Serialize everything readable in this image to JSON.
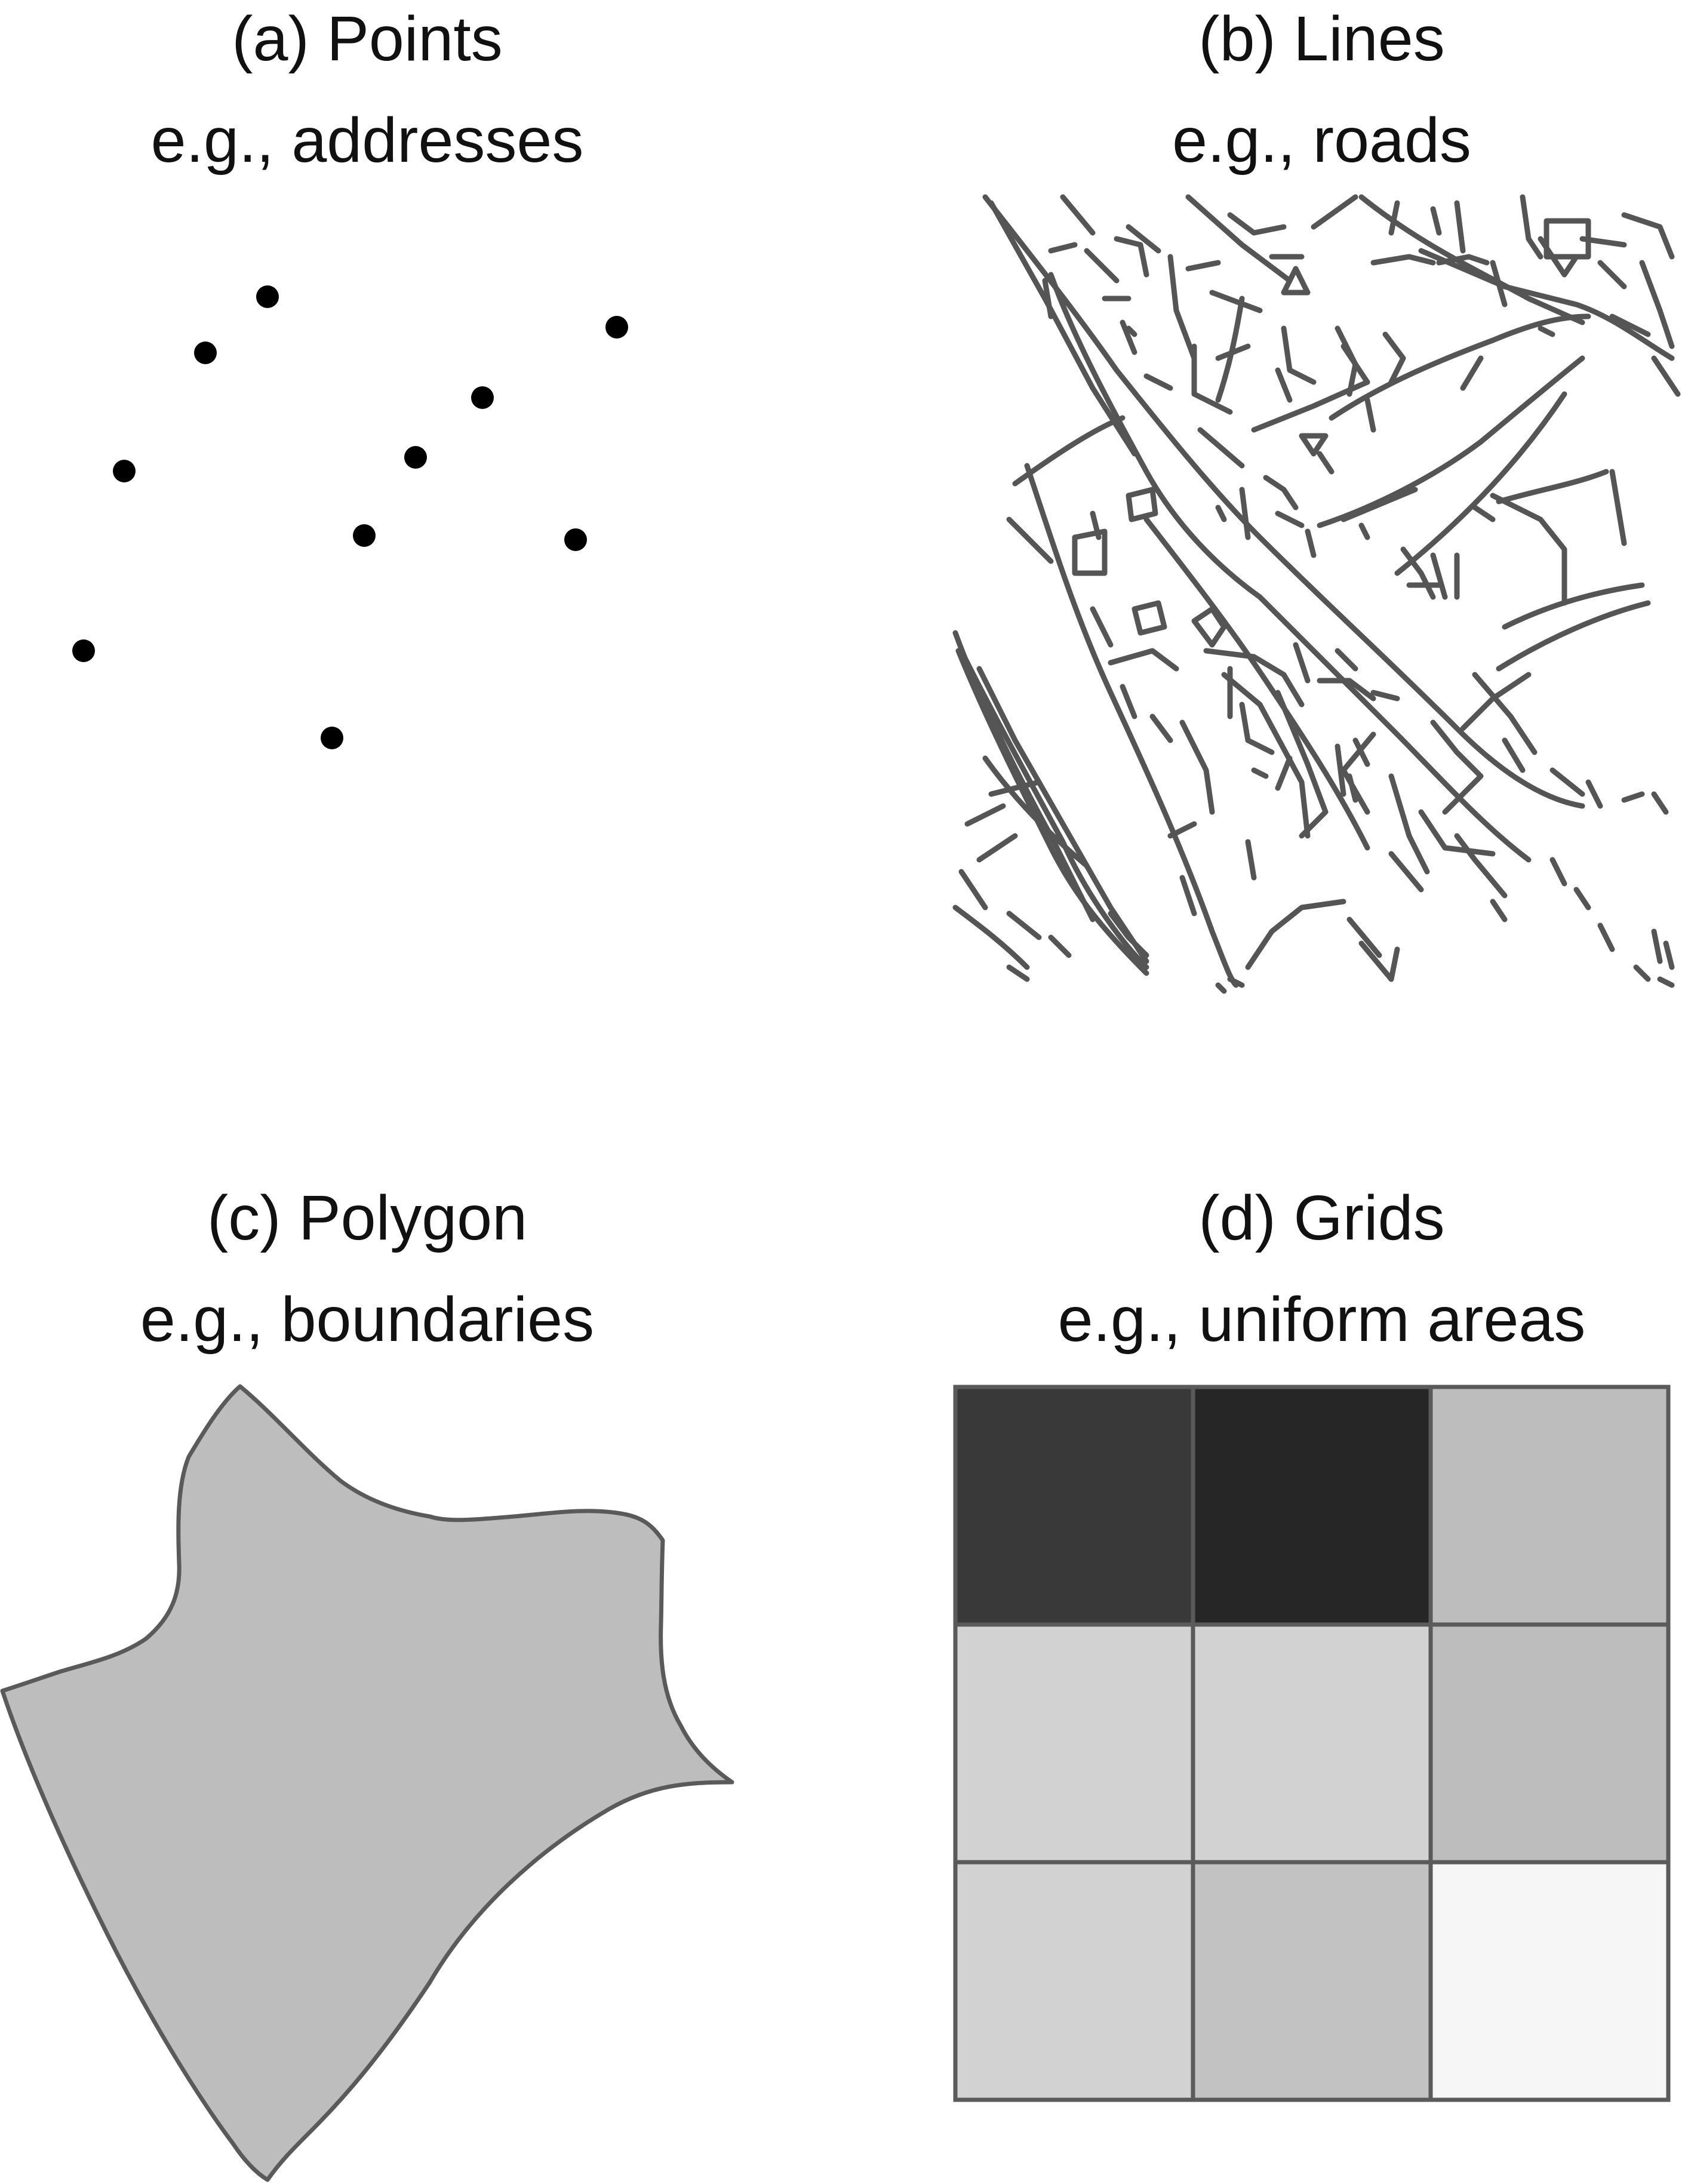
{
  "panels": {
    "points": {
      "title": "(a) Points",
      "subtitle": "e.g., addresses"
    },
    "lines": {
      "title": "(b) Lines",
      "subtitle": "e.g., roads"
    },
    "polygon": {
      "title": "(c) Polygon",
      "subtitle": "e.g., boundaries"
    },
    "grids": {
      "title": "(d) Grids",
      "subtitle": "e.g., uniform areas"
    }
  },
  "colors": {
    "point": "#000000",
    "line": "#555555",
    "polygon_fill": "#bdbdbd",
    "outline": "#5a5a5a",
    "grid_cells": [
      [
        "#393939",
        "#262626",
        "#bdbdbd"
      ],
      [
        "#d2d2d2",
        "#d2d2d2",
        "#bdbdbd"
      ],
      [
        "#d2d2d2",
        "#c2c2c2",
        "#f6f6f6"
      ]
    ]
  }
}
